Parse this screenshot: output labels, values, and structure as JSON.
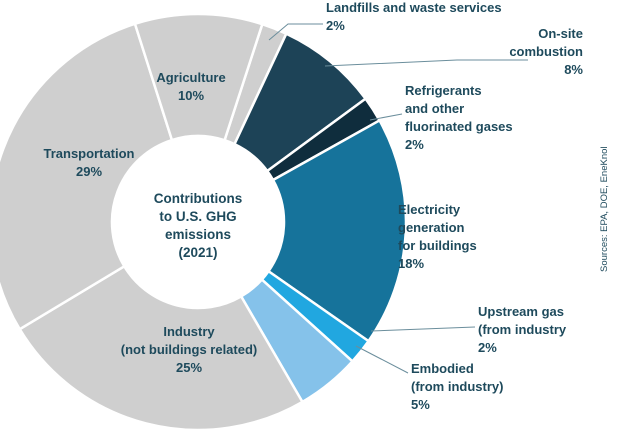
{
  "chart_data": {
    "type": "pie",
    "title": "Contributions to U.S. GHG emissions (2021)",
    "title_lines": [
      "Contributions",
      "to U.S. GHG",
      "emissions",
      "(2021)"
    ],
    "unit": "%",
    "slices": [
      {
        "key": "landfills",
        "label_lines": [
          "Landfills and waste services"
        ],
        "value": 2,
        "value_text": "2%",
        "color": "#cfcfcf"
      },
      {
        "key": "onsite",
        "label_lines": [
          "On-site",
          "combustion"
        ],
        "value": 8,
        "value_text": "8%",
        "color": "#1d4357"
      },
      {
        "key": "refrigerants",
        "label_lines": [
          "Refrigerants",
          "and other",
          "fluorinated gases"
        ],
        "value": 2,
        "value_text": "2%",
        "color": "#0f2d3d"
      },
      {
        "key": "electricity",
        "label_lines": [
          "Electricity",
          "generation",
          "for buildings"
        ],
        "value": 18,
        "value_text": "18%",
        "color": "#16739b"
      },
      {
        "key": "upstream",
        "label_lines": [
          "Upstream gas",
          "(from industry"
        ],
        "value": 2,
        "value_text": "2%",
        "color": "#21a7e0"
      },
      {
        "key": "embodied",
        "label_lines": [
          "Embodied",
          "(from industry)"
        ],
        "value": 5,
        "value_text": "5%",
        "color": "#85c2ea"
      },
      {
        "key": "industry",
        "label_lines": [
          "Industry",
          "(not buildings related)"
        ],
        "value": 25,
        "value_text": "25%",
        "color": "#cfcfcf"
      },
      {
        "key": "transportation",
        "label_lines": [
          "Transportation"
        ],
        "value": 29,
        "value_text": "29%",
        "color": "#cfcfcf"
      },
      {
        "key": "agriculture",
        "label_lines": [
          "Agriculture"
        ],
        "value": 10,
        "value_text": "10%",
        "color": "#cfcfcf"
      }
    ],
    "source": "Sources: EPA, DOE, EneKnol",
    "text_color": "#1e4a5c",
    "leader_color": "#6b8e9c"
  }
}
